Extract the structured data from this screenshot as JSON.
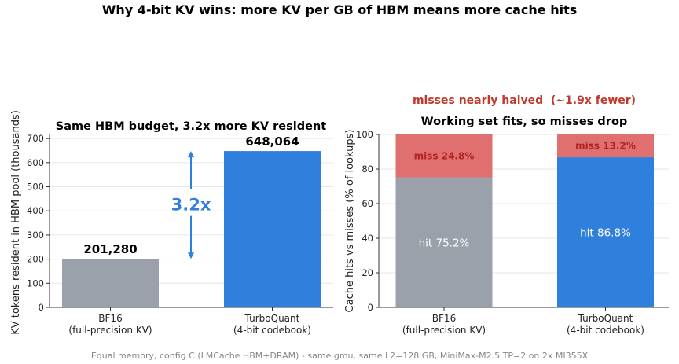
{
  "figure": {
    "title": "Why 4-bit KV wins: more KV per GB of HBM means more cache hits",
    "footnote": "Equal memory, config C (LMCache HBM+DRAM) - same gmu, same L2=128 GB, MiniMax-M2.5 TP=2 on 2x MI355X"
  },
  "colors": {
    "bf16": "#9ba1aa",
    "turbo": "#2f7fdd",
    "miss": "#e07070",
    "miss_text": "#b22222",
    "annotation_blue": "#2f7fdd",
    "callout_red": "#c0392b"
  },
  "chart_data": [
    {
      "type": "bar",
      "title": "Same HBM budget, 3.2x more KV resident",
      "xlabel": "",
      "ylabel": "KV tokens resident in HBM pool (thousands)",
      "categories": [
        "BF16\n(full-precision KV)",
        "TurboQuant\n(4-bit codebook)"
      ],
      "values": [
        201.28,
        648.064
      ],
      "value_labels": [
        "201,280",
        "648,064"
      ],
      "ylim": [
        0,
        720
      ],
      "yticks": [
        0,
        100,
        200,
        300,
        400,
        500,
        600,
        700
      ],
      "grid": true,
      "annotation": {
        "text": "3.2x",
        "from": 201.28,
        "to": 648.064
      }
    },
    {
      "type": "bar",
      "stacked": true,
      "title": "Working set fits, so misses drop",
      "callout": "misses nearly halved  (~1.9x fewer)",
      "xlabel": "",
      "ylabel": "Cache hits vs misses (% of lookups)",
      "categories": [
        "BF16\n(full-precision KV)",
        "TurboQuant\n(4-bit codebook)"
      ],
      "series": [
        {
          "name": "hit",
          "values": [
            75.2,
            86.8
          ],
          "labels": [
            "hit 75.2%",
            "hit 86.8%"
          ]
        },
        {
          "name": "miss",
          "values": [
            24.8,
            13.2
          ],
          "labels": [
            "miss 24.8%",
            "miss 13.2%"
          ]
        }
      ],
      "ylim": [
        0,
        100
      ],
      "yticks": [
        0,
        20,
        40,
        60,
        80,
        100
      ],
      "grid": true
    }
  ]
}
